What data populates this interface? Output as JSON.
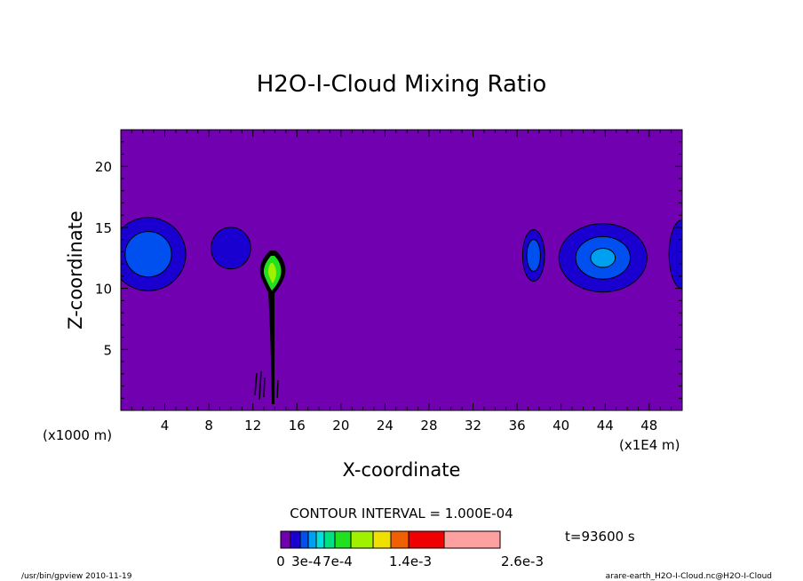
{
  "chart_data": {
    "type": "contour",
    "title": "H2O-I-Cloud Mixing Ratio",
    "xlabel": "X-coordinate",
    "ylabel": "Z-coordinate",
    "xunit_left": "(x1000 m)",
    "xunit_right": "(x1E4 m)",
    "xlim": [
      0,
      51
    ],
    "ylim": [
      0,
      23
    ],
    "xticks": [
      4,
      8,
      12,
      16,
      20,
      24,
      28,
      32,
      36,
      40,
      44,
      48
    ],
    "yticks": [
      5,
      10,
      15,
      20
    ],
    "contour_interval_text": "CONTOUR INTERVAL = 1.000E-04",
    "time_text": "t=93600 s",
    "background_level_color": "#7000b0",
    "levels": [
      {
        "color": "#7000b0"
      },
      {
        "color": "#1a00d0"
      },
      {
        "color": "#0050f0"
      },
      {
        "color": "#00a0f0"
      },
      {
        "color": "#00e0e0"
      },
      {
        "color": "#00e080"
      },
      {
        "color": "#20e020"
      },
      {
        "color": "#a0f000"
      },
      {
        "color": "#f0e000"
      },
      {
        "color": "#f06000"
      },
      {
        "color": "#f00000"
      },
      {
        "color": "#ffa0a0"
      }
    ],
    "colorbar_labels": [
      "0",
      "3e-4",
      "7e-4",
      "1.4e-3",
      "2.6e-3"
    ],
    "features": [
      {
        "x": 2.5,
        "z": 12.8,
        "rx": 3.4,
        "rz": 3.0,
        "levels": [
          1,
          2
        ]
      },
      {
        "x": 10.0,
        "z": 13.3,
        "rx": 1.8,
        "rz": 1.7,
        "levels": [
          1
        ]
      },
      {
        "x": 37.5,
        "z": 12.7,
        "rx": 1.0,
        "rz": 2.1,
        "levels": [
          1,
          2
        ]
      },
      {
        "x": 43.8,
        "z": 12.5,
        "rx": 4.0,
        "rz": 2.8,
        "levels": [
          1,
          2,
          3
        ]
      },
      {
        "x": 51.0,
        "z": 12.8,
        "rx": 1.2,
        "rz": 2.8,
        "levels": [
          1
        ]
      }
    ]
  },
  "footer": {
    "left": "/usr/bin/gpview   2010-11-19",
    "right": "arare-earth_H2O-I-Cloud.nc@H2O-I-Cloud"
  }
}
